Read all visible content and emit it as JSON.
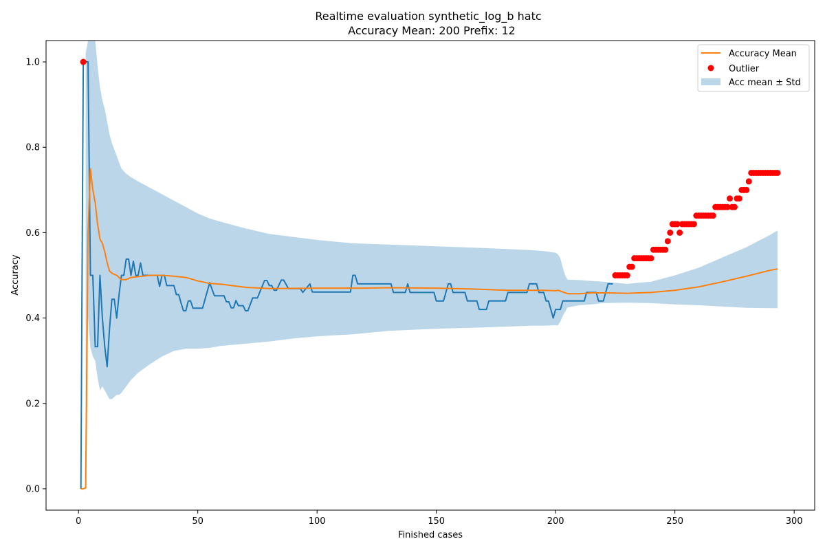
{
  "chart_data": {
    "type": "line",
    "title": "Realtime evaluation synthetic_log_b hatc",
    "subtitle": "Accuracy Mean: 200 Prefix: 12",
    "xlabel": "Finished cases",
    "ylabel": "Accuracy",
    "xlim": [
      -13.6,
      308.6
    ],
    "ylim": [
      -0.05,
      1.05
    ],
    "xticks": [
      0,
      50,
      100,
      150,
      200,
      250,
      300
    ],
    "yticks": [
      0.0,
      0.2,
      0.4,
      0.6,
      0.8,
      1.0
    ],
    "grid": false,
    "legend_placement": "top-right",
    "legend": [
      {
        "label": "Accuracy Mean",
        "kind": "line",
        "color": "#ff7f0e"
      },
      {
        "label": "Outlier",
        "kind": "marker",
        "color": "#ff0000"
      },
      {
        "label": "Acc mean ± Std",
        "kind": "patch",
        "color": "#1f77b4"
      }
    ],
    "colors": {
      "accuracy": "#1f77b4",
      "mean": "#ff7f0e",
      "band": "#1f77b4",
      "outlier": "#ff0000"
    },
    "series": [
      {
        "key": "accuracy",
        "points": [
          [
            1,
            0.0
          ],
          [
            2,
            1.0
          ],
          [
            3,
            1.0
          ],
          [
            4,
            1.0
          ],
          [
            5,
            0.5
          ],
          [
            6,
            0.5
          ],
          [
            7,
            0.333
          ],
          [
            8,
            0.333
          ],
          [
            9,
            0.5
          ],
          [
            10,
            0.4
          ],
          [
            11,
            0.333
          ],
          [
            12,
            0.286
          ],
          [
            13,
            0.375
          ],
          [
            14,
            0.444
          ],
          [
            15,
            0.444
          ],
          [
            16,
            0.4
          ],
          [
            17,
            0.455
          ],
          [
            18,
            0.5
          ],
          [
            19,
            0.5
          ],
          [
            20,
            0.538
          ],
          [
            21,
            0.538
          ],
          [
            22,
            0.5
          ],
          [
            23,
            0.533
          ],
          [
            24,
            0.5
          ],
          [
            25,
            0.5
          ],
          [
            26,
            0.529
          ],
          [
            27,
            0.5
          ],
          [
            30,
            0.5
          ],
          [
            33,
            0.5
          ],
          [
            34,
            0.474
          ],
          [
            35,
            0.5
          ],
          [
            36,
            0.5
          ],
          [
            37,
            0.476
          ],
          [
            40,
            0.476
          ],
          [
            41,
            0.455
          ],
          [
            42,
            0.455
          ],
          [
            43,
            0.435
          ],
          [
            44,
            0.417
          ],
          [
            45,
            0.417
          ],
          [
            46,
            0.44
          ],
          [
            47,
            0.44
          ],
          [
            48,
            0.423
          ],
          [
            52,
            0.423
          ],
          [
            55,
            0.483
          ],
          [
            56,
            0.467
          ],
          [
            57,
            0.452
          ],
          [
            61,
            0.452
          ],
          [
            62,
            0.438
          ],
          [
            63,
            0.438
          ],
          [
            64,
            0.424
          ],
          [
            65,
            0.424
          ],
          [
            66,
            0.441
          ],
          [
            67,
            0.429
          ],
          [
            69,
            0.429
          ],
          [
            70,
            0.417
          ],
          [
            71,
            0.417
          ],
          [
            73,
            0.447
          ],
          [
            75,
            0.447
          ],
          [
            78,
            0.488
          ],
          [
            79,
            0.488
          ],
          [
            80,
            0.476
          ],
          [
            81,
            0.476
          ],
          [
            82,
            0.465
          ],
          [
            83,
            0.465
          ],
          [
            85,
            0.489
          ],
          [
            86,
            0.489
          ],
          [
            88,
            0.469
          ],
          [
            93,
            0.469
          ],
          [
            94,
            0.46
          ],
          [
            97,
            0.48
          ],
          [
            98,
            0.461
          ],
          [
            114,
            0.461
          ],
          [
            115,
            0.5
          ],
          [
            116,
            0.5
          ],
          [
            117,
            0.48
          ],
          [
            131,
            0.48
          ],
          [
            132,
            0.46
          ],
          [
            137,
            0.46
          ],
          [
            138,
            0.48
          ],
          [
            139,
            0.46
          ],
          [
            149,
            0.46
          ],
          [
            150,
            0.44
          ],
          [
            153,
            0.44
          ],
          [
            155,
            0.48
          ],
          [
            156,
            0.48
          ],
          [
            157,
            0.46
          ],
          [
            162,
            0.46
          ],
          [
            163,
            0.44
          ],
          [
            167,
            0.44
          ],
          [
            168,
            0.42
          ],
          [
            171,
            0.42
          ],
          [
            172,
            0.44
          ],
          [
            179,
            0.44
          ],
          [
            180,
            0.46
          ],
          [
            188,
            0.46
          ],
          [
            189,
            0.48
          ],
          [
            192,
            0.48
          ],
          [
            193,
            0.46
          ],
          [
            195,
            0.46
          ],
          [
            196,
            0.44
          ],
          [
            197,
            0.44
          ],
          [
            198,
            0.42
          ],
          [
            199,
            0.4
          ],
          [
            200,
            0.42
          ],
          [
            202,
            0.42
          ],
          [
            203,
            0.44
          ],
          [
            212,
            0.44
          ],
          [
            213,
            0.46
          ],
          [
            217,
            0.46
          ],
          [
            218,
            0.44
          ],
          [
            220,
            0.44
          ],
          [
            222,
            0.48
          ],
          [
            224,
            0.48
          ]
        ]
      },
      {
        "key": "mean",
        "points": [
          [
            1,
            0.0
          ],
          [
            2,
            0.0
          ],
          [
            3,
            0.002
          ],
          [
            4,
            0.6
          ],
          [
            5,
            0.75
          ],
          [
            6,
            0.7
          ],
          [
            7,
            0.67
          ],
          [
            8,
            0.62
          ],
          [
            9,
            0.585
          ],
          [
            10,
            0.575
          ],
          [
            11,
            0.555
          ],
          [
            12,
            0.53
          ],
          [
            13,
            0.51
          ],
          [
            14,
            0.505
          ],
          [
            16,
            0.5
          ],
          [
            18,
            0.49
          ],
          [
            20,
            0.49
          ],
          [
            22,
            0.495
          ],
          [
            25,
            0.497
          ],
          [
            30,
            0.5
          ],
          [
            35,
            0.5
          ],
          [
            40,
            0.498
          ],
          [
            45,
            0.495
          ],
          [
            50,
            0.487
          ],
          [
            55,
            0.481
          ],
          [
            60,
            0.479
          ],
          [
            70,
            0.472
          ],
          [
            80,
            0.469
          ],
          [
            100,
            0.47
          ],
          [
            120,
            0.47
          ],
          [
            130,
            0.471
          ],
          [
            150,
            0.47
          ],
          [
            165,
            0.468
          ],
          [
            180,
            0.465
          ],
          [
            195,
            0.465
          ],
          [
            200,
            0.464
          ],
          [
            201,
            0.465
          ],
          [
            202,
            0.463
          ],
          [
            205,
            0.457
          ],
          [
            210,
            0.457
          ],
          [
            215,
            0.459
          ],
          [
            220,
            0.459
          ],
          [
            230,
            0.458
          ],
          [
            240,
            0.46
          ],
          [
            250,
            0.465
          ],
          [
            260,
            0.473
          ],
          [
            270,
            0.485
          ],
          [
            280,
            0.498
          ],
          [
            290,
            0.512
          ],
          [
            293,
            0.515
          ]
        ]
      }
    ],
    "band": [
      [
        3,
        -0.02,
        1.02
      ],
      [
        4,
        0.4,
        1.08
      ],
      [
        5,
        0.33,
        1.15
      ],
      [
        6,
        0.31,
        1.12
      ],
      [
        7,
        0.3,
        1.05
      ],
      [
        8,
        0.26,
        0.99
      ],
      [
        9,
        0.23,
        0.94
      ],
      [
        10,
        0.24,
        0.91
      ],
      [
        11,
        0.23,
        0.89
      ],
      [
        12,
        0.22,
        0.86
      ],
      [
        13,
        0.21,
        0.83
      ],
      [
        14,
        0.21,
        0.81
      ],
      [
        15,
        0.215,
        0.795
      ],
      [
        16,
        0.22,
        0.78
      ],
      [
        17,
        0.22,
        0.765
      ],
      [
        18,
        0.225,
        0.75
      ],
      [
        20,
        0.24,
        0.738
      ],
      [
        22,
        0.255,
        0.73
      ],
      [
        25,
        0.272,
        0.72
      ],
      [
        30,
        0.292,
        0.705
      ],
      [
        35,
        0.31,
        0.69
      ],
      [
        40,
        0.323,
        0.675
      ],
      [
        45,
        0.328,
        0.66
      ],
      [
        50,
        0.328,
        0.645
      ],
      [
        55,
        0.33,
        0.633
      ],
      [
        60,
        0.335,
        0.625
      ],
      [
        70,
        0.34,
        0.61
      ],
      [
        80,
        0.345,
        0.597
      ],
      [
        90,
        0.352,
        0.59
      ],
      [
        100,
        0.357,
        0.583
      ],
      [
        115,
        0.362,
        0.575
      ],
      [
        130,
        0.37,
        0.572
      ],
      [
        150,
        0.375,
        0.568
      ],
      [
        170,
        0.378,
        0.564
      ],
      [
        190,
        0.382,
        0.559
      ],
      [
        195,
        0.382,
        0.557
      ],
      [
        200,
        0.383,
        0.553
      ],
      [
        201,
        0.383,
        0.549
      ],
      [
        202,
        0.392,
        0.54
      ],
      [
        203,
        0.405,
        0.518
      ],
      [
        204,
        0.415,
        0.5
      ],
      [
        205,
        0.425,
        0.49
      ],
      [
        210,
        0.43,
        0.489
      ],
      [
        215,
        0.432,
        0.487
      ],
      [
        220,
        0.435,
        0.485
      ],
      [
        230,
        0.436,
        0.48
      ],
      [
        240,
        0.435,
        0.485
      ],
      [
        250,
        0.432,
        0.5
      ],
      [
        260,
        0.43,
        0.518
      ],
      [
        270,
        0.427,
        0.542
      ],
      [
        280,
        0.424,
        0.566
      ],
      [
        290,
        0.423,
        0.595
      ],
      [
        293,
        0.423,
        0.605
      ]
    ],
    "outliers": [
      [
        2,
        1.0
      ],
      [
        225,
        0.5
      ],
      [
        226,
        0.5
      ],
      [
        227,
        0.5
      ],
      [
        228,
        0.5
      ],
      [
        229,
        0.5
      ],
      [
        230,
        0.5
      ],
      [
        231,
        0.52
      ],
      [
        232,
        0.52
      ],
      [
        233,
        0.54
      ],
      [
        234,
        0.54
      ],
      [
        235,
        0.54
      ],
      [
        236,
        0.54
      ],
      [
        237,
        0.54
      ],
      [
        238,
        0.54
      ],
      [
        239,
        0.54
      ],
      [
        240,
        0.54
      ],
      [
        241,
        0.56
      ],
      [
        242,
        0.56
      ],
      [
        243,
        0.56
      ],
      [
        244,
        0.56
      ],
      [
        245,
        0.56
      ],
      [
        246,
        0.56
      ],
      [
        247,
        0.58
      ],
      [
        248,
        0.6
      ],
      [
        249,
        0.62
      ],
      [
        250,
        0.62
      ],
      [
        251,
        0.62
      ],
      [
        252,
        0.6
      ],
      [
        253,
        0.62
      ],
      [
        254,
        0.62
      ],
      [
        255,
        0.62
      ],
      [
        256,
        0.62
      ],
      [
        257,
        0.62
      ],
      [
        258,
        0.62
      ],
      [
        259,
        0.64
      ],
      [
        260,
        0.64
      ],
      [
        261,
        0.64
      ],
      [
        262,
        0.64
      ],
      [
        263,
        0.64
      ],
      [
        264,
        0.64
      ],
      [
        265,
        0.64
      ],
      [
        266,
        0.64
      ],
      [
        267,
        0.66
      ],
      [
        268,
        0.66
      ],
      [
        269,
        0.66
      ],
      [
        270,
        0.66
      ],
      [
        271,
        0.66
      ],
      [
        272,
        0.66
      ],
      [
        273,
        0.68
      ],
      [
        274,
        0.66
      ],
      [
        275,
        0.66
      ],
      [
        276,
        0.68
      ],
      [
        277,
        0.68
      ],
      [
        278,
        0.7
      ],
      [
        279,
        0.7
      ],
      [
        280,
        0.7
      ],
      [
        281,
        0.72
      ],
      [
        282,
        0.74
      ],
      [
        283,
        0.74
      ],
      [
        284,
        0.74
      ],
      [
        285,
        0.74
      ],
      [
        286,
        0.74
      ],
      [
        287,
        0.74
      ],
      [
        288,
        0.74
      ],
      [
        289,
        0.74
      ],
      [
        290,
        0.74
      ],
      [
        291,
        0.74
      ],
      [
        292,
        0.74
      ],
      [
        293,
        0.74
      ]
    ]
  }
}
